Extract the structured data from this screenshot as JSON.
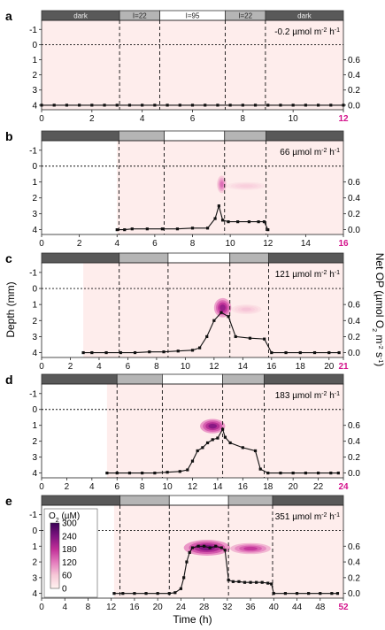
{
  "figure": {
    "y_axis_title": "Depth (mm)",
    "x_axis_title": "Time (h)",
    "right_axis_title_parts": [
      "Net OP (µmol O",
      "2",
      " m",
      "-2",
      " s",
      "-1",
      ")"
    ],
    "light_labels": {
      "dark": "dark",
      "low": "I=22",
      "high": "I=95"
    },
    "colorbar": {
      "title_parts": [
        "O",
        "2",
        " (µM)"
      ],
      "ticks": [
        "300",
        "240",
        "180",
        "120",
        "60",
        "0"
      ],
      "colors": [
        "#fff3f0",
        "#f7c9d8",
        "#e47bbd",
        "#c12f98",
        "#7e1480",
        "#3a0356"
      ]
    },
    "highlight_color": "#d4148c"
  },
  "chart_data": [
    {
      "type": "heatmap",
      "panel": "a",
      "rate_label": "-0.2 µmol m",
      "rate_unit_exp": "-2",
      "rate_tail": " h",
      "rate_tail_exp": "-1",
      "xlim": [
        0,
        12
      ],
      "x_ticks": [
        "0",
        "2",
        "4",
        "6",
        "8",
        "10",
        "12"
      ],
      "y_ticks": [
        "-1",
        "0",
        "1",
        "2",
        "3",
        "4"
      ],
      "right_ticks": [
        "0.6",
        "0.4",
        "0.2",
        "0.0"
      ],
      "light_bar": [
        {
          "start": 0,
          "end": 3.1,
          "level": "dark",
          "label": "dark"
        },
        {
          "start": 3.1,
          "end": 4.7,
          "level": "low",
          "label": "I=22"
        },
        {
          "start": 4.7,
          "end": 7.3,
          "level": "high",
          "label": "I=95"
        },
        {
          "start": 7.3,
          "end": 8.9,
          "level": "low",
          "label": "I=22"
        },
        {
          "start": 8.9,
          "end": 12,
          "level": "dark",
          "label": "dark"
        }
      ],
      "data_start": 0,
      "hotspots": [],
      "net_op": {
        "x": [
          0,
          0.5,
          1,
          1.5,
          2,
          2.5,
          3,
          3.5,
          4,
          4.5,
          5,
          5.5,
          6,
          6.5,
          7,
          7.5,
          8,
          8.5,
          9,
          9.5,
          10,
          10.5,
          11,
          11.5,
          12
        ],
        "y": [
          0,
          0,
          0,
          0,
          0,
          0,
          0,
          0,
          0,
          0,
          0,
          0,
          0,
          0,
          0,
          0,
          0,
          0,
          0,
          0,
          0,
          0,
          0,
          0,
          0
        ]
      }
    },
    {
      "type": "heatmap",
      "panel": "b",
      "rate_label": "66 µmol m",
      "rate_unit_exp": "-2",
      "rate_tail": " h",
      "rate_tail_exp": "-1",
      "xlim": [
        0,
        16
      ],
      "x_ticks": [
        "0",
        "2",
        "4",
        "6",
        "8",
        "10",
        "12",
        "14",
        "16"
      ],
      "y_ticks": [
        "-1",
        "0",
        "1",
        "2",
        "3",
        "4"
      ],
      "right_ticks": [
        "0.6",
        "0.4",
        "0.2",
        "0.0"
      ],
      "light_bar": [
        {
          "start": 0,
          "end": 4.1,
          "level": "dark"
        },
        {
          "start": 4.1,
          "end": 6.5,
          "level": "low"
        },
        {
          "start": 6.5,
          "end": 9.7,
          "level": "high"
        },
        {
          "start": 9.7,
          "end": 11.9,
          "level": "low"
        },
        {
          "start": 11.9,
          "end": 16,
          "level": "dark"
        }
      ],
      "data_start": 4.0,
      "hotspots": [
        {
          "t0": 9.3,
          "t1": 9.8,
          "d0": 0.6,
          "d1": 1.7,
          "intensity": 0.45
        },
        {
          "t0": 9.8,
          "t1": 11.9,
          "d0": 1.0,
          "d1": 1.5,
          "intensity": 0.18
        }
      ],
      "net_op": {
        "x": [
          4.0,
          4.4,
          4.8,
          5.6,
          6.4,
          7.2,
          8.0,
          8.8,
          9.2,
          9.4,
          9.6,
          9.9,
          10.4,
          11.0,
          11.5,
          11.8,
          12.0
        ],
        "y": [
          0.0,
          0.0,
          0.01,
          0.01,
          0.01,
          0.01,
          0.02,
          0.02,
          0.14,
          0.3,
          0.12,
          0.1,
          0.1,
          0.1,
          0.1,
          0.1,
          0.0
        ]
      }
    },
    {
      "type": "heatmap",
      "panel": "c",
      "rate_label": "121 µmol m",
      "rate_unit_exp": "-2",
      "rate_tail": " h",
      "rate_tail_exp": "-1",
      "xlim": [
        0,
        21
      ],
      "x_ticks": [
        "0",
        "2",
        "4",
        "6",
        "8",
        "10",
        "12",
        "14",
        "16",
        "18",
        "20",
        "21"
      ],
      "y_ticks": [
        "-1",
        "0",
        "1",
        "2",
        "3",
        "4"
      ],
      "right_ticks": [
        "0.6",
        "0.4",
        "0.2",
        "0.0"
      ],
      "light_bar": [
        {
          "start": 0,
          "end": 5.4,
          "level": "dark"
        },
        {
          "start": 5.4,
          "end": 8.8,
          "level": "low"
        },
        {
          "start": 8.8,
          "end": 13.1,
          "level": "high"
        },
        {
          "start": 13.1,
          "end": 15.8,
          "level": "low"
        },
        {
          "start": 15.8,
          "end": 21,
          "level": "dark"
        }
      ],
      "data_start": 2.9,
      "hotspots": [
        {
          "t0": 12.0,
          "t1": 13.2,
          "d0": 0.6,
          "d1": 1.8,
          "intensity": 0.75
        },
        {
          "t0": 13.2,
          "t1": 15.3,
          "d0": 1.0,
          "d1": 1.6,
          "intensity": 0.22
        }
      ],
      "net_op": {
        "x": [
          2.9,
          3.5,
          4.5,
          5.5,
          6.5,
          7.5,
          8.5,
          9.5,
          10.5,
          11.0,
          11.5,
          12.0,
          12.5,
          13.0,
          13.5,
          14.5,
          15.5,
          16.0,
          17,
          18,
          19,
          20,
          20.7
        ],
        "y": [
          0.0,
          0.0,
          0.0,
          0.0,
          0.0,
          0.01,
          0.01,
          0.02,
          0.03,
          0.06,
          0.2,
          0.4,
          0.5,
          0.45,
          0.2,
          0.18,
          0.17,
          0.0,
          0.0,
          0.0,
          0.0,
          0.0,
          0.0
        ]
      }
    },
    {
      "type": "heatmap",
      "panel": "d",
      "rate_label": "183 µmol m",
      "rate_unit_exp": "-2",
      "rate_tail": " h",
      "rate_tail_exp": "-1",
      "xlim": [
        0,
        24
      ],
      "x_ticks": [
        "0",
        "2",
        "4",
        "6",
        "8",
        "10",
        "12",
        "14",
        "16",
        "18",
        "20",
        "22",
        "24"
      ],
      "y_ticks": [
        "-1",
        "0",
        "1",
        "2",
        "3",
        "4"
      ],
      "right_ticks": [
        "0.6",
        "0.4",
        "0.2",
        "0.0"
      ],
      "light_bar": [
        {
          "start": 0,
          "end": 6.0,
          "level": "dark"
        },
        {
          "start": 6.0,
          "end": 9.6,
          "level": "low"
        },
        {
          "start": 9.6,
          "end": 14.4,
          "level": "high"
        },
        {
          "start": 14.4,
          "end": 17.7,
          "level": "low"
        },
        {
          "start": 17.7,
          "end": 24,
          "level": "dark"
        }
      ],
      "data_start": 5.2,
      "hotspots": [
        {
          "t0": 12.6,
          "t1": 14.6,
          "d0": 0.6,
          "d1": 1.5,
          "intensity": 0.8
        }
      ],
      "net_op": {
        "x": [
          5.2,
          6,
          7,
          8,
          9,
          10,
          11,
          11.6,
          12.0,
          12.4,
          12.8,
          13.2,
          13.6,
          14.0,
          14.4,
          14.6,
          15,
          16,
          17,
          17.4,
          18,
          19,
          20,
          21,
          22,
          23,
          23.6
        ],
        "y": [
          0.0,
          0.0,
          0.0,
          0.0,
          0.0,
          0.01,
          0.02,
          0.04,
          0.15,
          0.28,
          0.32,
          0.38,
          0.42,
          0.44,
          0.55,
          0.45,
          0.38,
          0.32,
          0.28,
          0.05,
          0.0,
          0.0,
          0.0,
          0.0,
          0.0,
          0.0,
          0.0
        ]
      }
    },
    {
      "type": "heatmap",
      "panel": "e",
      "rate_label": "351 µmol m",
      "rate_unit_exp": "-2",
      "rate_tail": " h",
      "rate_tail_exp": "-1",
      "xlim": [
        0,
        52
      ],
      "x_ticks": [
        "0",
        "4",
        "8",
        "12",
        "16",
        "20",
        "24",
        "28",
        "32",
        "36",
        "40",
        "44",
        "48",
        "52"
      ],
      "y_ticks": [
        "-1",
        "0",
        "1",
        "2",
        "3",
        "4"
      ],
      "right_ticks": [
        "0.6",
        "0.4",
        "0.2",
        "0.0"
      ],
      "light_bar": [
        {
          "start": 0,
          "end": 13.5,
          "level": "dark"
        },
        {
          "start": 13.5,
          "end": 22,
          "level": "low"
        },
        {
          "start": 22,
          "end": 32.2,
          "level": "high"
        },
        {
          "start": 32.2,
          "end": 39.8,
          "level": "low"
        },
        {
          "start": 39.8,
          "end": 52,
          "level": "dark"
        }
      ],
      "data_start": 12.5,
      "hotspots": [
        {
          "t0": 24.5,
          "t1": 32.5,
          "d0": 0.6,
          "d1": 1.6,
          "intensity": 0.82
        },
        {
          "t0": 32.5,
          "t1": 39.5,
          "d0": 0.8,
          "d1": 1.5,
          "intensity": 0.6
        }
      ],
      "net_op": {
        "x": [
          12.5,
          14,
          16,
          18,
          20,
          22,
          23,
          24,
          24.5,
          25,
          25.5,
          26,
          27,
          28,
          29,
          30,
          31,
          31.6,
          32.2,
          33,
          34,
          35,
          36,
          37,
          38,
          39,
          39.6,
          40,
          42,
          44,
          46,
          48,
          50,
          51
        ],
        "y": [
          0.0,
          0.0,
          0.0,
          0.0,
          0.0,
          0.0,
          0.01,
          0.06,
          0.2,
          0.4,
          0.52,
          0.58,
          0.6,
          0.6,
          0.58,
          0.6,
          0.58,
          0.55,
          0.17,
          0.15,
          0.15,
          0.14,
          0.14,
          0.14,
          0.14,
          0.13,
          0.12,
          0.0,
          0.0,
          0.0,
          0.0,
          0.0,
          0.0,
          0.0
        ]
      }
    }
  ]
}
